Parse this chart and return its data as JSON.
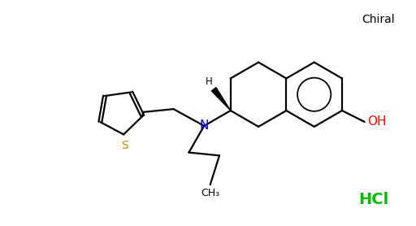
{
  "chiral_label": "Chiral",
  "hcl_label": "HCl",
  "oh_label": "OH",
  "h_label": "H",
  "n_label": "N",
  "ch3_label": "CH₃",
  "s_label": "S",
  "chiral_color": "#000000",
  "hcl_color": "#00bb00",
  "oh_color": "#ff0000",
  "n_color": "#0000ff",
  "s_color": "#cc8800",
  "bond_color": "#000000",
  "bg_color": "#ffffff",
  "figsize": [
    5.12,
    2.78
  ],
  "dpi": 100
}
